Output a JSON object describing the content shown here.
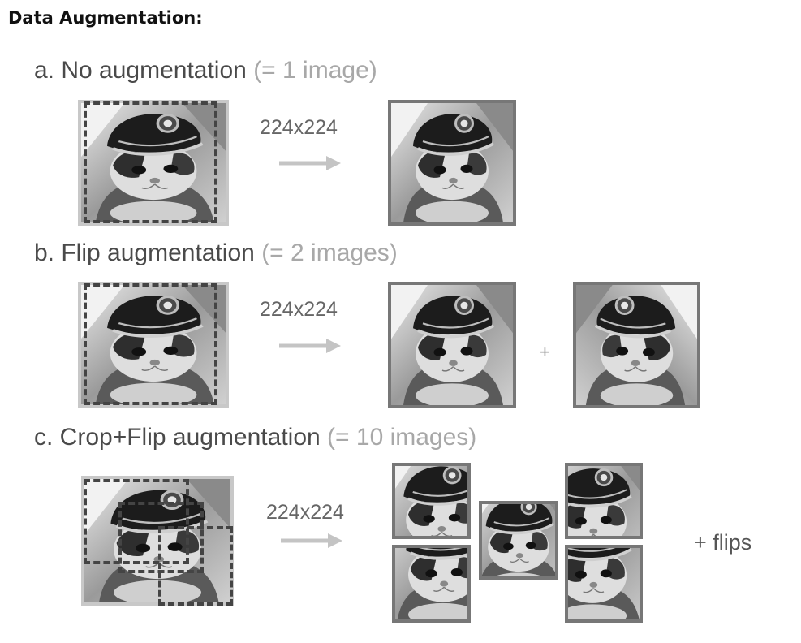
{
  "title": "Data Augmentation:",
  "sections": [
    {
      "label": "a. No augmentation",
      "count": "(= 1 image)",
      "size": "224x224"
    },
    {
      "label": "b. Flip augmentation",
      "count": "(= 2 images)",
      "size": "224x224",
      "joiner": "+"
    },
    {
      "label": "c. Crop+Flip augmentation",
      "count": "(= 10 images)",
      "size": "224x224",
      "suffix": "+ flips"
    }
  ],
  "colors": {
    "frame": "#777777",
    "dashed_crop": "#444444",
    "arrow": "#c4c4c4"
  }
}
